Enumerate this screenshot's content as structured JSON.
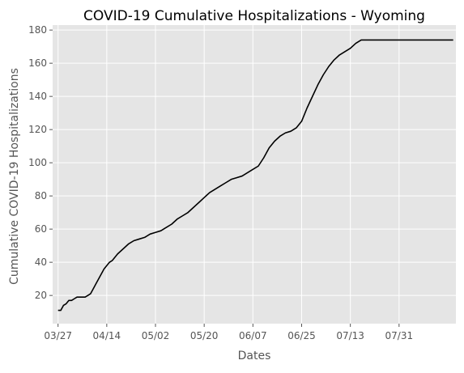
{
  "chart_data": {
    "type": "line",
    "title": "COVID-19 Cumulative Hospitalizations - Wyoming",
    "xlabel": "Dates",
    "ylabel": "Cumulative COVID-19 Hospitalizations",
    "x_tick_labels": [
      "03/27",
      "04/14",
      "05/02",
      "05/20",
      "06/07",
      "06/25",
      "07/13",
      "07/31"
    ],
    "y_ticks": [
      20,
      40,
      60,
      80,
      100,
      120,
      140,
      160,
      180
    ],
    "ylim": [
      3,
      183
    ],
    "xlim_days": [
      -2,
      147
    ],
    "grid": true,
    "style": "ggplot",
    "background_color": "#e5e5e5",
    "grid_color": "#ffffff",
    "line_color": "#000000",
    "series": [
      {
        "day_index": [
          0,
          1,
          2,
          3,
          4,
          5,
          6,
          7,
          8,
          9,
          10,
          11,
          12,
          13,
          14,
          15,
          16,
          17,
          18,
          19,
          20,
          22,
          24,
          26,
          28,
          30,
          32,
          34,
          36,
          38,
          40,
          42,
          44,
          46,
          48,
          50,
          52,
          54,
          56,
          58,
          60,
          62,
          64,
          66,
          68,
          70,
          72,
          74,
          76,
          78,
          80,
          82,
          84,
          86,
          88,
          90,
          92,
          94,
          96,
          98,
          100,
          102,
          104,
          106,
          108,
          110,
          112,
          114,
          116,
          118,
          120,
          122,
          124,
          126,
          128,
          130,
          132,
          134,
          136,
          138,
          140,
          142,
          144,
          146
        ],
        "values": [
          11,
          11,
          14,
          15,
          17,
          17,
          18,
          19,
          19,
          19,
          19,
          20,
          21,
          24,
          27,
          30,
          33,
          36,
          38,
          40,
          41,
          45,
          48,
          51,
          53,
          54,
          55,
          57,
          58,
          59,
          61,
          63,
          66,
          68,
          70,
          73,
          76,
          79,
          82,
          84,
          86,
          88,
          90,
          91,
          92,
          94,
          96,
          98,
          103,
          109,
          113,
          116,
          118,
          119,
          121,
          125,
          133,
          140,
          147,
          153,
          158,
          162,
          165,
          167,
          169,
          172,
          174,
          174,
          174,
          174,
          174,
          174,
          174,
          174,
          174,
          174,
          174,
          174,
          174,
          174,
          174,
          174,
          174,
          174
        ]
      }
    ]
  }
}
